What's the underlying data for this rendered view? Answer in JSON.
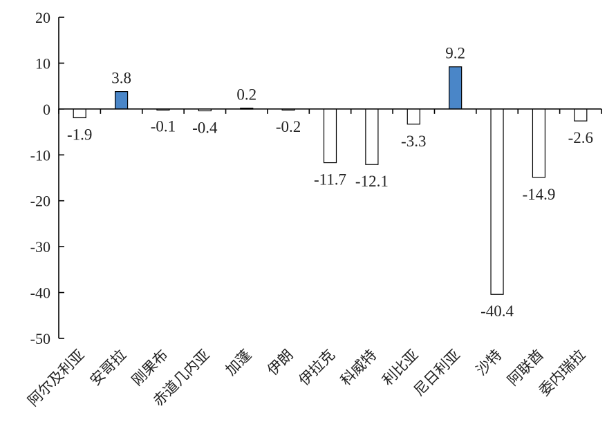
{
  "chart_data": {
    "type": "bar",
    "title": "",
    "xlabel": "",
    "ylabel": "",
    "ylim": [
      -50,
      20
    ],
    "yticks": [
      20,
      10,
      0,
      -10,
      -20,
      -30,
      -40,
      -50
    ],
    "grid": false,
    "legend": "none",
    "categories": [
      "阿尔及利亚",
      "安哥拉",
      "刚果布",
      "赤道几内亚",
      "加蓬",
      "伊朗",
      "伊拉克",
      "科威特",
      "利比亚",
      "尼日利亚",
      "沙特",
      "阿联酋",
      "委内瑞拉"
    ],
    "values": [
      -1.9,
      3.8,
      -0.1,
      -0.4,
      0.2,
      -0.2,
      -11.7,
      -12.1,
      -3.3,
      9.2,
      -40.4,
      -14.9,
      -2.6
    ],
    "value_labels": [
      "-1.9",
      "3.8",
      "-0.1",
      "-0.4",
      "0.2",
      "-0.2",
      "-11.7",
      "-12.1",
      "-3.3",
      "9.2",
      "-40.4",
      "-14.9",
      "-2.6"
    ],
    "colors": {
      "positive": "#4a86c8",
      "negative": "#ffffff",
      "outline": "#000000"
    }
  }
}
